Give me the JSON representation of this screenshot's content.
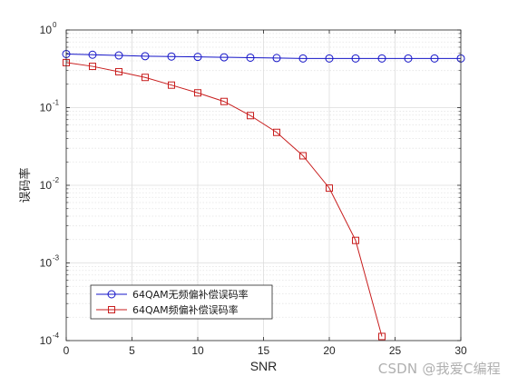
{
  "chart_data": {
    "type": "line",
    "xlabel": "SNR",
    "ylabel": "误码率",
    "xlim": [
      0,
      30
    ],
    "ylim": [
      0.0001,
      1
    ],
    "yscale": "log",
    "grid": true,
    "legend_position": "bottom-left",
    "x_ticks": [
      "0",
      "5",
      "10",
      "15",
      "20",
      "25",
      "30"
    ],
    "y_ticks": [
      {
        "value": 1,
        "base": "10",
        "exp": "0"
      },
      {
        "value": 0.1,
        "base": "10",
        "exp": "-1"
      },
      {
        "value": 0.01,
        "base": "10",
        "exp": "-2"
      },
      {
        "value": 0.001,
        "base": "10",
        "exp": "-3"
      },
      {
        "value": 0.0001,
        "base": "10",
        "exp": "-4"
      }
    ],
    "series": [
      {
        "name": "64QAM无频偏补偿误码率",
        "color": "#1515c8",
        "marker": "circle",
        "x": [
          0,
          2,
          4,
          6,
          8,
          10,
          12,
          14,
          16,
          18,
          20,
          22,
          24,
          26,
          28,
          30
        ],
        "y": [
          0.49,
          0.48,
          0.47,
          0.46,
          0.455,
          0.45,
          0.445,
          0.44,
          0.435,
          0.43,
          0.43,
          0.43,
          0.43,
          0.43,
          0.43,
          0.43
        ]
      },
      {
        "name": "64QAM频偏补偿误码率",
        "color": "#c81e1e",
        "marker": "square",
        "x": [
          0,
          2,
          4,
          6,
          8,
          10,
          12,
          14,
          16,
          18,
          20,
          22,
          24
        ],
        "y": [
          0.38,
          0.34,
          0.29,
          0.245,
          0.195,
          0.155,
          0.12,
          0.079,
          0.048,
          0.024,
          0.0092,
          0.00195,
          0.000113
        ]
      }
    ]
  },
  "watermark": "CSDN @我爱C编程"
}
